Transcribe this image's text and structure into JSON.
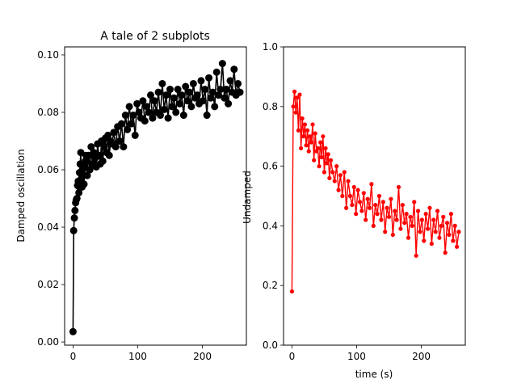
{
  "chart_data": [
    {
      "type": "line",
      "title": "A tale of 2 subplots",
      "xlabel": "",
      "ylabel": "Damped oscillation",
      "xlim": [
        -13,
        268
      ],
      "ylim": [
        -0.0011,
        0.1028
      ],
      "xticks": [
        0,
        100,
        200
      ],
      "yticks": [
        0.0,
        0.02,
        0.04,
        0.06,
        0.08,
        0.1
      ],
      "ytick_labels": [
        "0.00",
        "0.02",
        "0.04",
        "0.06",
        "0.08",
        "0.10"
      ],
      "xtick_labels": [
        "0",
        "100",
        "200"
      ],
      "color": "#000000",
      "marker": "large-dot",
      "series": [
        {
          "x": [
            0,
            1,
            2,
            3,
            4,
            5,
            6,
            7,
            8,
            9,
            10,
            11,
            12,
            13,
            14,
            15,
            16,
            17,
            18,
            19,
            20,
            22,
            24,
            26,
            28,
            30,
            32,
            34,
            36,
            38,
            40,
            42,
            44,
            46,
            48,
            50,
            52,
            54,
            56,
            58,
            60,
            63,
            66,
            69,
            72,
            75,
            78,
            81,
            84,
            87,
            90,
            93,
            96,
            99,
            102,
            105,
            108,
            111,
            114,
            117,
            120,
            123,
            126,
            129,
            132,
            135,
            138,
            141,
            144,
            147,
            150,
            153,
            156,
            159,
            162,
            165,
            168,
            171,
            174,
            177,
            180,
            183,
            186,
            189,
            192,
            195,
            198,
            201,
            204,
            207,
            210,
            213,
            216,
            219,
            222,
            225,
            228,
            231,
            234,
            237,
            240,
            243,
            246,
            249,
            252,
            255,
            258
          ],
          "y": [
            0.0036,
            0.0388,
            0.0432,
            0.0458,
            0.0485,
            0.0495,
            0.05,
            0.0545,
            0.056,
            0.052,
            0.059,
            0.062,
            0.066,
            0.057,
            0.054,
            0.06,
            0.058,
            0.055,
            0.061,
            0.063,
            0.065,
            0.058,
            0.065,
            0.06,
            0.068,
            0.062,
            0.066,
            0.064,
            0.061,
            0.069,
            0.065,
            0.062,
            0.07,
            0.063,
            0.068,
            0.071,
            0.066,
            0.072,
            0.065,
            0.07,
            0.069,
            0.073,
            0.068,
            0.075,
            0.07,
            0.076,
            0.068,
            0.079,
            0.074,
            0.082,
            0.076,
            0.079,
            0.072,
            0.083,
            0.08,
            0.078,
            0.084,
            0.077,
            0.082,
            0.08,
            0.086,
            0.078,
            0.084,
            0.08,
            0.087,
            0.079,
            0.09,
            0.081,
            0.086,
            0.078,
            0.088,
            0.082,
            0.085,
            0.08,
            0.088,
            0.083,
            0.086,
            0.079,
            0.089,
            0.084,
            0.087,
            0.082,
            0.09,
            0.085,
            0.086,
            0.083,
            0.091,
            0.084,
            0.088,
            0.079,
            0.092,
            0.085,
            0.087,
            0.082,
            0.094,
            0.086,
            0.088,
            0.097,
            0.085,
            0.088,
            0.083,
            0.091,
            0.087,
            0.095,
            0.086,
            0.09,
            0.087
          ]
        }
      ]
    },
    {
      "type": "line",
      "title": "",
      "xlabel": "time (s)",
      "ylabel": "Undamped",
      "xlim": [
        -13,
        268
      ],
      "ylim": [
        0.0,
        1.0
      ],
      "xticks": [
        0,
        100,
        200
      ],
      "yticks": [
        0.0,
        0.2,
        0.4,
        0.6,
        0.8,
        1.0
      ],
      "ytick_labels": [
        "0.0",
        "0.2",
        "0.4",
        "0.6",
        "0.8",
        "1.0"
      ],
      "xtick_labels": [
        "0",
        "100",
        "200"
      ],
      "color": "#ff0000",
      "marker": "small-dot",
      "series": [
        {
          "x": [
            0,
            2,
            4,
            6,
            8,
            10,
            12,
            14,
            16,
            18,
            20,
            22,
            24,
            26,
            28,
            30,
            32,
            34,
            36,
            38,
            40,
            42,
            44,
            46,
            48,
            50,
            52,
            54,
            56,
            58,
            60,
            63,
            66,
            69,
            72,
            75,
            78,
            81,
            84,
            87,
            90,
            93,
            96,
            99,
            102,
            105,
            108,
            111,
            114,
            117,
            120,
            123,
            126,
            129,
            132,
            135,
            138,
            141,
            144,
            147,
            150,
            153,
            156,
            159,
            162,
            165,
            168,
            171,
            174,
            177,
            180,
            183,
            186,
            189,
            192,
            195,
            198,
            201,
            204,
            207,
            210,
            213,
            216,
            219,
            222,
            225,
            228,
            231,
            234,
            237,
            240,
            243,
            246,
            249,
            252,
            255,
            258
          ],
          "y": [
            0.18,
            0.8,
            0.85,
            0.78,
            0.83,
            0.72,
            0.84,
            0.66,
            0.76,
            0.7,
            0.74,
            0.67,
            0.72,
            0.65,
            0.7,
            0.68,
            0.74,
            0.62,
            0.71,
            0.65,
            0.66,
            0.6,
            0.68,
            0.63,
            0.7,
            0.58,
            0.66,
            0.61,
            0.64,
            0.56,
            0.62,
            0.58,
            0.55,
            0.6,
            0.52,
            0.57,
            0.5,
            0.58,
            0.46,
            0.55,
            0.5,
            0.47,
            0.53,
            0.44,
            0.52,
            0.48,
            0.45,
            0.51,
            0.42,
            0.49,
            0.46,
            0.54,
            0.4,
            0.47,
            0.44,
            0.5,
            0.42,
            0.48,
            0.38,
            0.46,
            0.43,
            0.49,
            0.37,
            0.45,
            0.42,
            0.53,
            0.39,
            0.47,
            0.41,
            0.44,
            0.36,
            0.43,
            0.4,
            0.48,
            0.3,
            0.45,
            0.38,
            0.42,
            0.35,
            0.44,
            0.39,
            0.46,
            0.34,
            0.42,
            0.38,
            0.45,
            0.36,
            0.4,
            0.43,
            0.31,
            0.41,
            0.37,
            0.44,
            0.35,
            0.4,
            0.33,
            0.38
          ]
        }
      ]
    }
  ]
}
